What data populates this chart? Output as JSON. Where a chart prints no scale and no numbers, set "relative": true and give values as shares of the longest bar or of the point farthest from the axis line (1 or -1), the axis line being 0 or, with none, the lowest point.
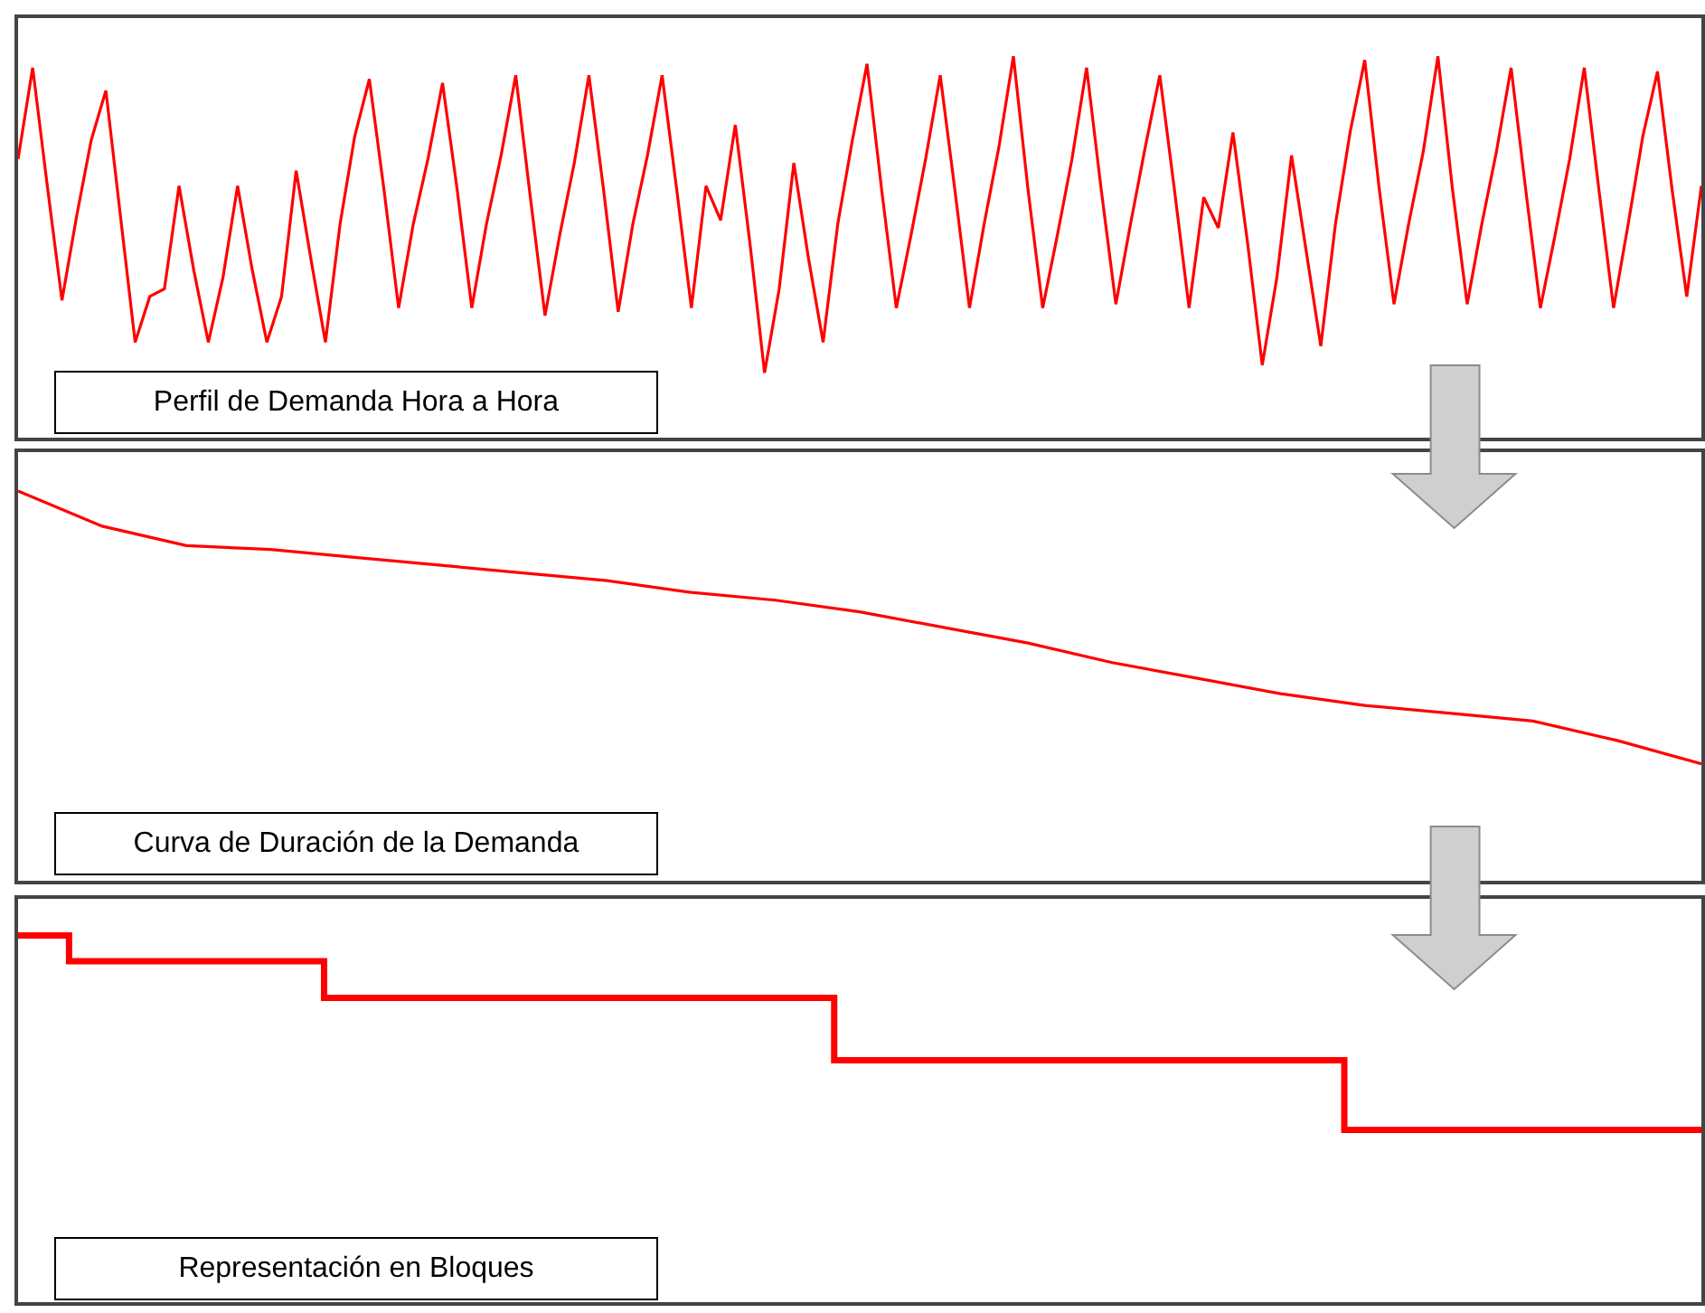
{
  "chart_data": [
    {
      "type": "line",
      "relative": true,
      "tick_labels": false,
      "color": "#ff0000",
      "categories": [
        null,
        null,
        null,
        null,
        null,
        null,
        null,
        null,
        null,
        null,
        null,
        null,
        null,
        null,
        null,
        null,
        null,
        null,
        null,
        null,
        null,
        null,
        null,
        null,
        null,
        null,
        null,
        null,
        null,
        null,
        null,
        null,
        null,
        null,
        null,
        null,
        null,
        null,
        null,
        null,
        null,
        null,
        null,
        null,
        null,
        null,
        null,
        null,
        null,
        null,
        null,
        null,
        null,
        null,
        null,
        null,
        null,
        null,
        null,
        null,
        null,
        null,
        null,
        null,
        null,
        null,
        null,
        null,
        null,
        null,
        null,
        null,
        null,
        null,
        null,
        null,
        null,
        null,
        null,
        null,
        null,
        null,
        null,
        null,
        null,
        null,
        null,
        null,
        null,
        null,
        null,
        null,
        null,
        null,
        null,
        null,
        null,
        null,
        null,
        null,
        null,
        null,
        null,
        null,
        null,
        null,
        null,
        null,
        null,
        null,
        null,
        null,
        null,
        null,
        null,
        null
      ],
      "values": [
        0.73,
        0.97,
        0.66,
        0.36,
        0.58,
        0.78,
        0.91,
        0.58,
        0.25,
        0.37,
        0.39,
        0.66,
        0.44,
        0.25,
        0.42,
        0.66,
        0.44,
        0.25,
        0.37,
        0.7,
        0.47,
        0.25,
        0.56,
        0.79,
        0.94,
        0.65,
        0.34,
        0.56,
        0.73,
        0.93,
        0.65,
        0.34,
        0.56,
        0.74,
        0.95,
        0.63,
        0.32,
        0.53,
        0.72,
        0.95,
        0.65,
        0.33,
        0.56,
        0.74,
        0.95,
        0.65,
        0.34,
        0.66,
        0.57,
        0.82,
        0.51,
        0.17,
        0.39,
        0.72,
        0.47,
        0.25,
        0.56,
        0.78,
        0.98,
        0.65,
        0.34,
        0.53,
        0.73,
        0.95,
        0.65,
        0.34,
        0.56,
        0.76,
        1.0,
        0.65,
        0.34,
        0.53,
        0.73,
        0.97,
        0.65,
        0.35,
        0.56,
        0.76,
        0.95,
        0.65,
        0.34,
        0.63,
        0.55,
        0.8,
        0.51,
        0.19,
        0.42,
        0.74,
        0.49,
        0.24,
        0.56,
        0.8,
        0.99,
        0.65,
        0.35,
        0.56,
        0.75,
        1.0,
        0.65,
        0.35,
        0.56,
        0.75,
        0.97,
        0.65,
        0.34,
        0.53,
        0.73,
        0.97,
        0.65,
        0.34,
        0.56,
        0.79,
        0.96,
        0.65,
        0.37,
        0.66
      ],
      "annotations": [
        "Perfil de Demanda Hora a Hora"
      ]
    },
    {
      "type": "line",
      "relative": true,
      "tick_labels": false,
      "color": "#ff0000",
      "categories": [
        null,
        null,
        null,
        null,
        null,
        null,
        null,
        null,
        null,
        null,
        null,
        null,
        null,
        null,
        null,
        null,
        null,
        null,
        null,
        null,
        null
      ],
      "values": [
        1.0,
        0.91,
        0.86,
        0.85,
        0.83,
        0.81,
        0.79,
        0.77,
        0.74,
        0.72,
        0.69,
        0.65,
        0.61,
        0.56,
        0.52,
        0.48,
        0.45,
        0.43,
        0.41,
        0.36,
        0.3
      ],
      "annotations": [
        "Curva de Duración de la Demanda"
      ]
    },
    {
      "type": "step",
      "relative": true,
      "tick_labels": false,
      "color": "#ff0000",
      "categories": [
        null,
        null,
        null,
        null,
        null,
        null,
        null,
        null,
        null,
        null,
        null,
        null,
        null,
        null,
        null,
        null,
        null,
        null,
        null,
        null,
        null,
        null,
        null,
        null,
        null,
        null,
        null,
        null,
        null,
        null,
        null,
        null,
        null,
        null
      ],
      "values": [
        1.0,
        0.93,
        0.93,
        0.93,
        0.93,
        0.93,
        0.83,
        0.83,
        0.83,
        0.83,
        0.83,
        0.83,
        0.83,
        0.83,
        0.83,
        0.83,
        0.66,
        0.66,
        0.66,
        0.66,
        0.66,
        0.66,
        0.66,
        0.66,
        0.66,
        0.66,
        0.47,
        0.47,
        0.47,
        0.47,
        0.47,
        0.47,
        0.47,
        0.47
      ],
      "annotations": [
        "Representación en Bloques"
      ]
    }
  ]
}
